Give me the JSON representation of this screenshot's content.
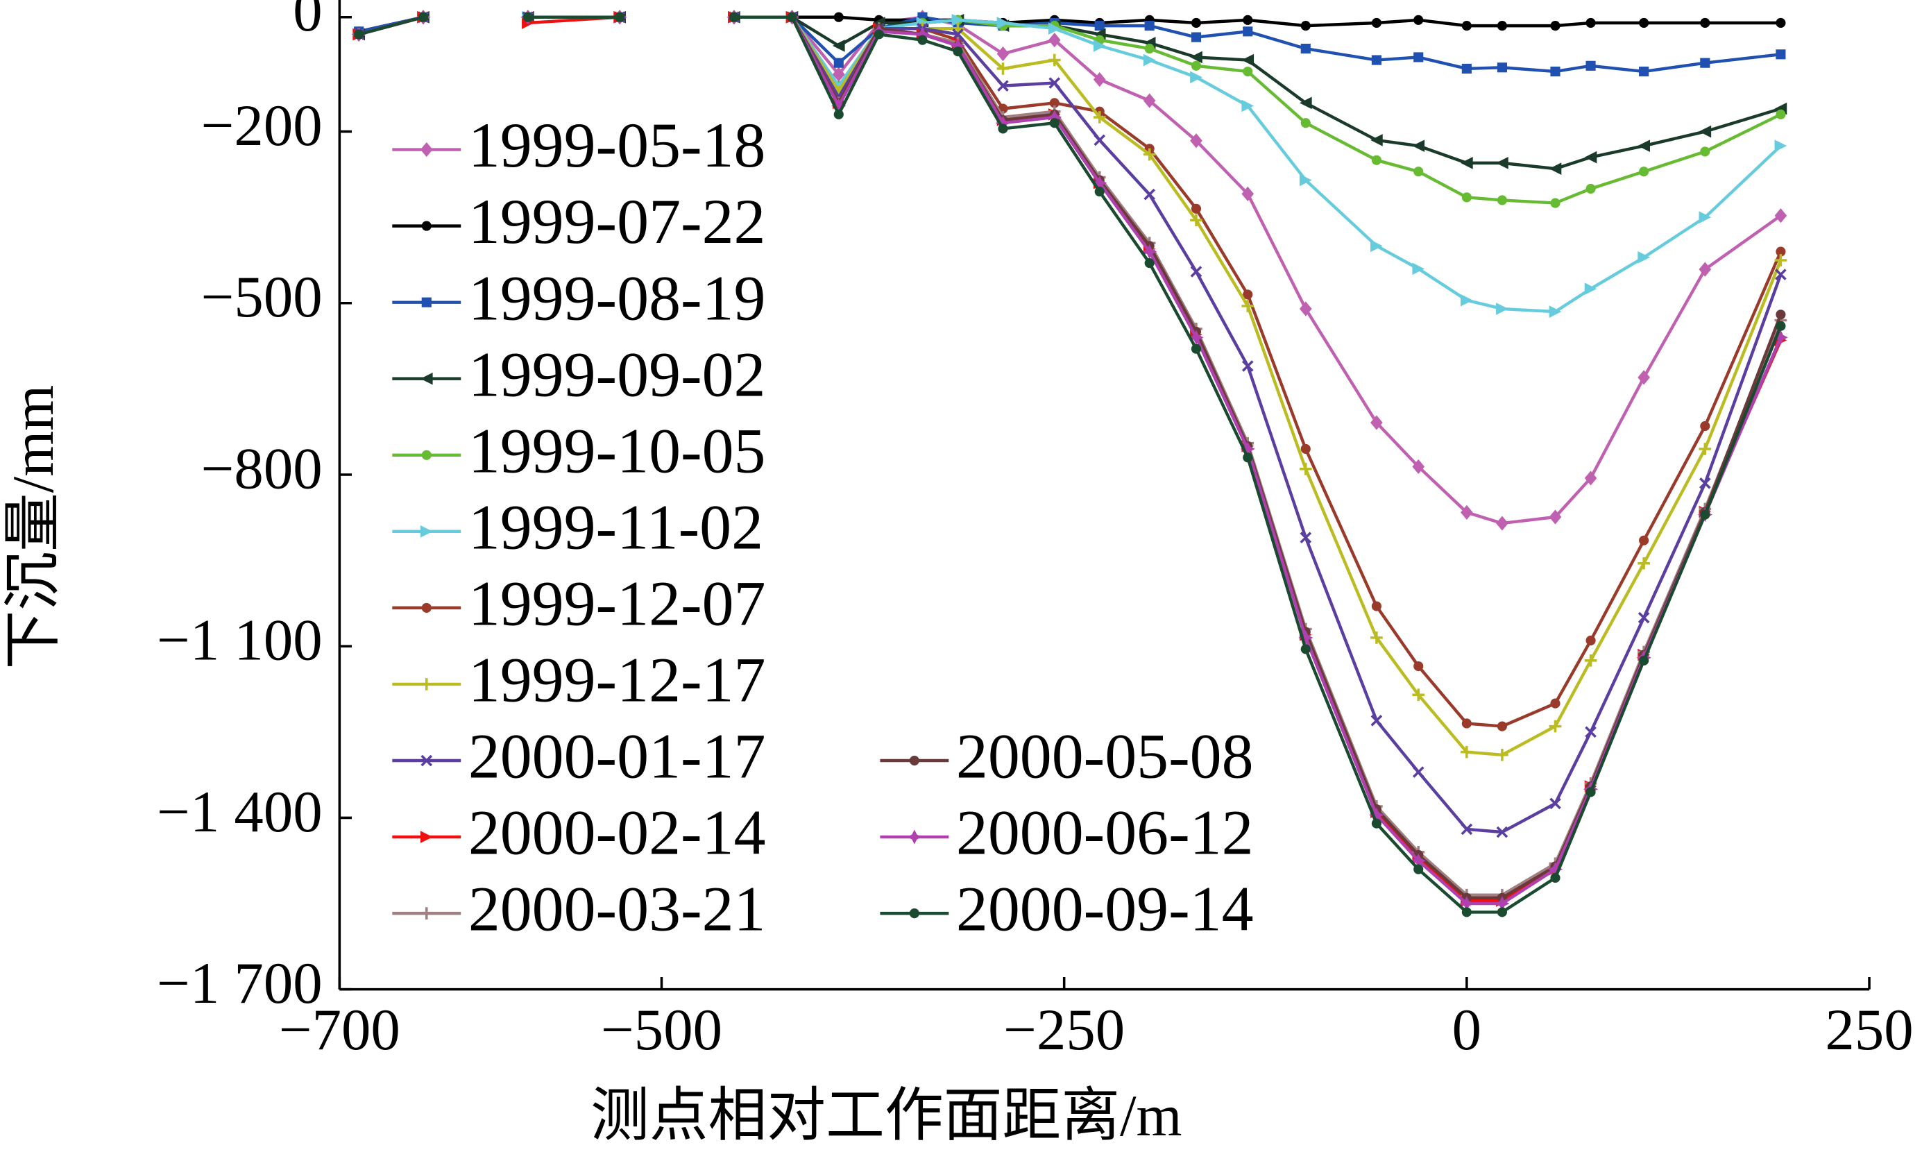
{
  "chart_data": {
    "type": "line",
    "x_label": "测点相对工作面距离/m",
    "y_label": "下沉量/mm",
    "x": [
      -688,
      -648,
      -620,
      -583,
      -526,
      -480,
      -455,
      -419,
      -390,
      -365,
      -338,
      -316,
      -288,
      -256,
      -228,
      -197,
      -168,
      -136,
      -100,
      -56,
      -30,
      0,
      22,
      55,
      77,
      110,
      148,
      195
    ],
    "xlim": [
      -700,
      250
    ],
    "xticks": [
      {
        "value": -700,
        "label": "−700"
      },
      {
        "value": -500,
        "label": "−500"
      },
      {
        "value": -250,
        "label": "−250"
      },
      0,
      250
    ],
    "ylim": [
      -1700,
      30
    ],
    "yticks": [
      0,
      {
        "value": -200,
        "label": "−200"
      },
      {
        "value": -500,
        "label": "−500"
      },
      {
        "value": -800,
        "label": "−800"
      },
      {
        "value": -1100,
        "label": "−1 100"
      },
      {
        "value": -1400,
        "label": "−1 400"
      },
      {
        "value": -1700,
        "label": "−1 700"
      }
    ],
    "grid": false,
    "series": [
      {
        "name": "1999-05-18",
        "color": "#c060b0",
        "marker": "diamond",
        "values": [
          -30,
          0,
          null,
          0,
          0,
          null,
          0,
          0,
          -100,
          -10,
          0,
          -13,
          -64,
          -40,
          -109,
          -146,
          -216,
          -309,
          -510,
          -709,
          -786,
          -866,
          -885,
          -874,
          -806,
          -630,
          -441,
          -347
        ]
      },
      {
        "name": "1999-07-22",
        "color": "#000000",
        "marker": "circle",
        "values": [
          -25,
          0,
          null,
          0,
          0,
          null,
          0,
          0,
          0,
          -5,
          -5,
          -5,
          -10,
          -5,
          -10,
          -5,
          -10,
          -5,
          -15,
          -10,
          -5,
          -15,
          -15,
          -15,
          -10,
          -10,
          -10,
          -10
        ]
      },
      {
        "name": "1999-08-19",
        "color": "#2050b0",
        "marker": "square",
        "values": [
          -25,
          0,
          null,
          0,
          0,
          null,
          0,
          0,
          -80,
          -20,
          0,
          -10,
          -15,
          -10,
          -15,
          -15,
          -35,
          -25,
          -55,
          -75,
          -70,
          -90,
          -88,
          -95,
          -85,
          -95,
          -80,
          -65
        ]
      },
      {
        "name": "1999-09-02",
        "color": "#1a3a2a",
        "marker": "triangle-left",
        "values": [
          -30,
          0,
          null,
          0,
          0,
          null,
          0,
          0,
          -50,
          -10,
          -10,
          -5,
          -15,
          -15,
          -30,
          -45,
          -70,
          -75,
          -150,
          -215,
          -225,
          -255,
          -255,
          -265,
          -245,
          -225,
          -200,
          -160
        ]
      },
      {
        "name": "1999-10-05",
        "color": "#66bb33",
        "marker": "circle",
        "values": [
          -30,
          0,
          null,
          0,
          0,
          null,
          0,
          0,
          -120,
          -20,
          -10,
          -5,
          -15,
          -15,
          -40,
          -55,
          -85,
          -95,
          -185,
          -250,
          -270,
          -315,
          -320,
          -325,
          -300,
          -270,
          -235,
          -170
        ]
      },
      {
        "name": "1999-11-02",
        "color": "#66ccdd",
        "marker": "triangle-right",
        "values": [
          -30,
          0,
          null,
          0,
          0,
          null,
          0,
          0,
          -120,
          -20,
          -10,
          -5,
          -10,
          -20,
          -50,
          -75,
          -105,
          -155,
          -285,
          -400,
          -440,
          -495,
          -510,
          -515,
          -475,
          -420,
          -350,
          -225
        ]
      },
      {
        "name": "1999-12-07",
        "color": "#9a3a2a",
        "marker": "circle",
        "values": [
          -30,
          0,
          null,
          0,
          0,
          null,
          0,
          0,
          -130,
          -20,
          -20,
          -40,
          -160,
          -150,
          -165,
          -230,
          -335,
          -485,
          -755,
          -1030,
          -1135,
          -1235,
          -1240,
          -1200,
          -1090,
          -915,
          -715,
          -410
        ]
      },
      {
        "name": "1999-12-17",
        "color": "#bbbb22",
        "marker": "plus",
        "values": [
          -30,
          0,
          null,
          0,
          0,
          null,
          0,
          0,
          -130,
          -20,
          -20,
          -20,
          -90,
          -75,
          -175,
          -240,
          -355,
          -505,
          -790,
          -1085,
          -1185,
          -1285,
          -1290,
          -1240,
          -1125,
          -955,
          -755,
          -425
        ]
      },
      {
        "name": "2000-01-17",
        "color": "#5a3ea0",
        "marker": "x",
        "values": [
          -30,
          0,
          null,
          0,
          0,
          null,
          0,
          0,
          -140,
          -20,
          -20,
          -30,
          -120,
          -115,
          -215,
          -310,
          -445,
          -610,
          -910,
          -1230,
          -1320,
          -1420,
          -1425,
          -1375,
          -1250,
          -1050,
          -815,
          -450
        ]
      },
      {
        "name": "2000-02-14",
        "color": "#ee1111",
        "marker": "triangle-right",
        "values": [
          -30,
          0,
          null,
          -10,
          0,
          null,
          0,
          0,
          -150,
          -20,
          -30,
          -45,
          -180,
          -170,
          -290,
          -405,
          -555,
          -750,
          -1080,
          -1390,
          -1470,
          -1545,
          -1545,
          -1490,
          -1345,
          -1115,
          -865,
          -565
        ]
      },
      {
        "name": "2000-03-21",
        "color": "#a08080",
        "marker": "plus",
        "values": [
          -30,
          0,
          null,
          0,
          0,
          null,
          0,
          0,
          -150,
          -20,
          -30,
          -45,
          -175,
          -165,
          -280,
          -395,
          -545,
          -745,
          -1070,
          -1380,
          -1460,
          -1535,
          -1535,
          -1480,
          -1340,
          -1110,
          -860,
          -530
        ]
      },
      {
        "name": "2000-05-08",
        "color": "#6a3a3a",
        "marker": "circle",
        "values": [
          -30,
          0,
          null,
          0,
          0,
          null,
          0,
          0,
          -150,
          -20,
          -30,
          -50,
          -180,
          -170,
          -285,
          -400,
          -550,
          -750,
          -1075,
          -1385,
          -1465,
          -1540,
          -1540,
          -1485,
          -1345,
          -1115,
          -865,
          -520
        ]
      },
      {
        "name": "2000-06-12",
        "color": "#b040b0",
        "marker": "star",
        "values": [
          -30,
          0,
          null,
          0,
          0,
          null,
          0,
          0,
          -155,
          -25,
          -30,
          -50,
          -185,
          -175,
          -290,
          -410,
          -560,
          -755,
          -1085,
          -1395,
          -1475,
          -1550,
          -1550,
          -1490,
          -1350,
          -1120,
          -870,
          -560
        ]
      },
      {
        "name": "2000-09-14",
        "color": "#1a4a30",
        "marker": "circle",
        "values": [
          -30,
          0,
          null,
          0,
          0,
          null,
          0,
          0,
          -170,
          -30,
          -40,
          -60,
          -195,
          -185,
          -305,
          -430,
          -580,
          -770,
          -1105,
          -1410,
          -1490,
          -1565,
          -1565,
          -1505,
          -1355,
          -1125,
          -870,
          -540
        ]
      }
    ]
  }
}
